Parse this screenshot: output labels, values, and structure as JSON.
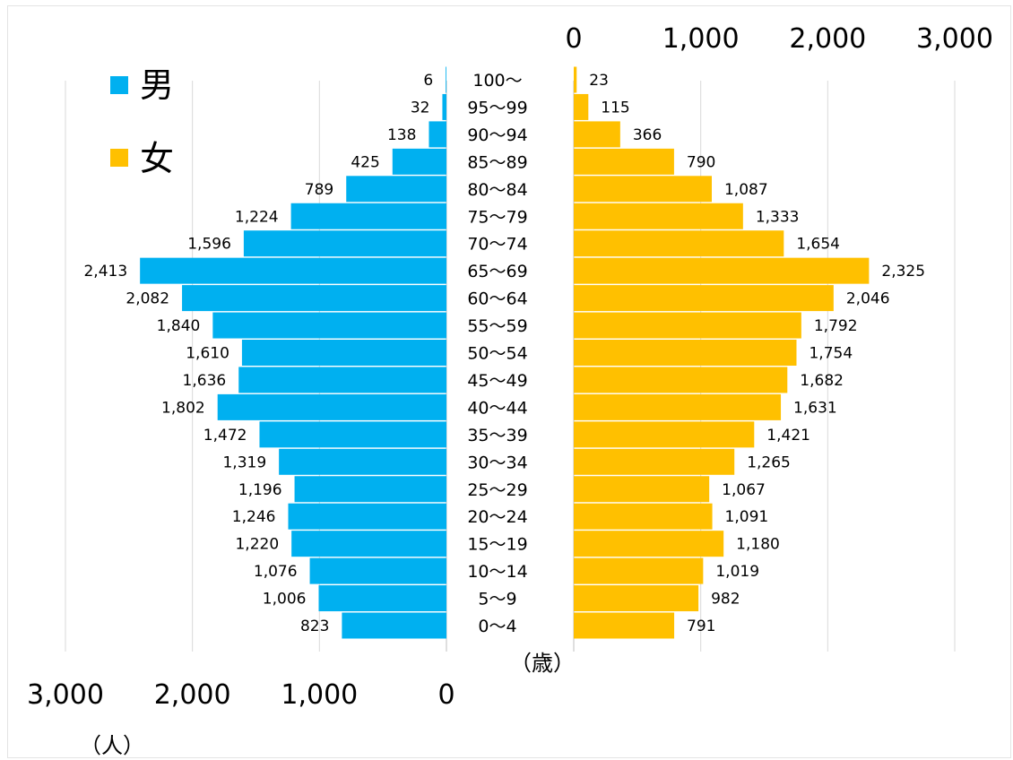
{
  "chart_data": {
    "type": "bar",
    "orientation": "horizontal",
    "layout": "population-pyramid",
    "categories": [
      "0～4",
      "5～9",
      "10～14",
      "15～19",
      "20～24",
      "25～29",
      "30～34",
      "35～39",
      "40～44",
      "45～49",
      "50～54",
      "55～59",
      "60～64",
      "65～69",
      "70～74",
      "75～79",
      "80～84",
      "85～89",
      "90～94",
      "95～99",
      "100～"
    ],
    "series": [
      {
        "name": "男",
        "color": "#00b0f0",
        "side": "left",
        "values": [
          823,
          1006,
          1076,
          1220,
          1246,
          1196,
          1319,
          1472,
          1802,
          1636,
          1610,
          1840,
          2082,
          2413,
          1596,
          1224,
          789,
          425,
          138,
          32,
          6
        ],
        "labels": [
          "823",
          "1,006",
          "1,076",
          "1,220",
          "1,246",
          "1,196",
          "1,319",
          "1,472",
          "1,802",
          "1,636",
          "1,610",
          "1,840",
          "2,082",
          "2,413",
          "1,596",
          "1,224",
          "789",
          "425",
          "138",
          "32",
          "6"
        ]
      },
      {
        "name": "女",
        "color": "#ffc000",
        "side": "right",
        "values": [
          791,
          982,
          1019,
          1180,
          1091,
          1067,
          1265,
          1421,
          1631,
          1682,
          1754,
          1792,
          2046,
          2325,
          1654,
          1333,
          1087,
          790,
          366,
          115,
          23
        ],
        "labels": [
          "791",
          "982",
          "1,019",
          "1,180",
          "1,091",
          "1,067",
          "1,265",
          "1,421",
          "1,631",
          "1,682",
          "1,754",
          "1,792",
          "2,046",
          "2,325",
          "1,654",
          "1,333",
          "1,087",
          "790",
          "366",
          "115",
          "23"
        ]
      }
    ],
    "xlim": [
      0,
      3000
    ],
    "left_axis_ticks": [
      "3,000",
      "2,000",
      "1,000",
      "0"
    ],
    "right_axis_ticks": [
      "0",
      "1,000",
      "2,000",
      "3,000"
    ],
    "x_unit_label": "（人）",
    "age_unit_label": "（歳）",
    "grid": true,
    "legend_placement": "top-left"
  }
}
